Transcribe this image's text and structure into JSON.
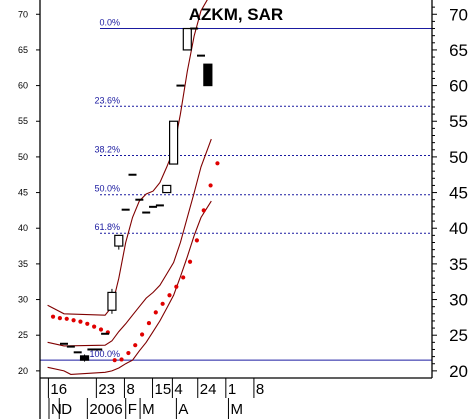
{
  "chart_data": {
    "type": "candlestick",
    "title": "AZKM, SAR",
    "left_axis": {
      "range": [
        19,
        72
      ],
      "ticks": [
        20,
        25,
        30,
        35,
        40,
        45,
        50,
        55,
        60,
        65,
        70
      ]
    },
    "right_axis": {
      "range": [
        19,
        72
      ],
      "ticks": [
        20,
        25,
        30,
        35,
        40,
        45,
        50,
        55,
        60,
        65,
        70
      ]
    },
    "x_axis": {
      "day_labels": [
        {
          "label": "16",
          "slot": -1.4
        },
        {
          "label": "23",
          "slot": 5.6
        },
        {
          "label": "8",
          "slot": 9.7
        },
        {
          "label": "15",
          "slot": 13.8
        },
        {
          "label": "4",
          "slot": 16.7
        },
        {
          "label": "24",
          "slot": 20.4
        },
        {
          "label": "1",
          "slot": 24.5
        },
        {
          "label": "8",
          "slot": 28.6
        }
      ],
      "month_labels": [
        {
          "label": "N",
          "slot": -1.9
        },
        {
          "label": "D",
          "slot": -0.4
        },
        {
          "label": "2006",
          "slot": 3.7
        },
        {
          "label": "F",
          "slot": 9.3
        },
        {
          "label": "M",
          "slot": 11.4
        },
        {
          "label": "A",
          "slot": 16.7
        },
        {
          "label": "M",
          "slot": 24.3
        }
      ]
    },
    "candles": [
      {
        "slot": 0,
        "open": 23.8,
        "high": 23.8,
        "low": 23.8,
        "close": 23.8
      },
      {
        "slot": 1,
        "open": 23.4,
        "high": 23.4,
        "low": 23.4,
        "close": 23.4
      },
      {
        "slot": 2,
        "open": 22.6,
        "high": 22.6,
        "low": 22.6,
        "close": 22.6
      },
      {
        "slot": 3,
        "open": 22.1,
        "high": 22.3,
        "low": 21.3,
        "close": 21.5
      },
      {
        "slot": 4,
        "open": 23.0,
        "high": 23.0,
        "low": 23.0,
        "close": 23.0
      },
      {
        "slot": 5,
        "open": 23.0,
        "high": 23.0,
        "low": 23.0,
        "close": 23.0
      },
      {
        "slot": 6,
        "open": 25.2,
        "high": 25.2,
        "low": 25.2,
        "close": 25.2
      },
      {
        "slot": 7,
        "open": 28.5,
        "high": 31.5,
        "low": 28.0,
        "close": 31.0
      },
      {
        "slot": 8,
        "open": 37.5,
        "high": 39.0,
        "low": 37.0,
        "close": 39.0
      },
      {
        "slot": 9,
        "open": 42.6,
        "high": 42.6,
        "low": 42.6,
        "close": 42.6
      },
      {
        "slot": 10,
        "open": 47.5,
        "high": 47.5,
        "low": 47.5,
        "close": 47.5
      },
      {
        "slot": 11,
        "open": 44.0,
        "high": 44.0,
        "low": 44.0,
        "close": 44.0
      },
      {
        "slot": 12,
        "open": 42.2,
        "high": 42.2,
        "low": 42.2,
        "close": 42.2
      },
      {
        "slot": 13,
        "open": 43.0,
        "high": 43.0,
        "low": 43.0,
        "close": 43.0
      },
      {
        "slot": 14,
        "open": 43.2,
        "high": 43.2,
        "low": 43.2,
        "close": 43.2
      },
      {
        "slot": 15,
        "open": 45.0,
        "high": 46.0,
        "low": 45.0,
        "close": 46.0
      },
      {
        "slot": 16,
        "open": 49.0,
        "high": 55.0,
        "low": 49.0,
        "close": 55.0
      },
      {
        "slot": 17,
        "open": 60.0,
        "high": 60.0,
        "low": 60.0,
        "close": 60.0
      },
      {
        "slot": 18,
        "open": 65.0,
        "high": 68.0,
        "low": 65.0,
        "close": 68.0
      },
      {
        "slot": 19,
        "open": 68.0,
        "high": 68.0,
        "low": 68.0,
        "close": 68.0
      },
      {
        "slot": 20,
        "open": 64.2,
        "high": 64.2,
        "low": 64.2,
        "close": 64.2
      },
      {
        "slot": 21,
        "open": 63.0,
        "high": 63.0,
        "low": 60.0,
        "close": 60.0
      }
    ],
    "sar": [
      {
        "slot": -1.6,
        "value": 27.6
      },
      {
        "slot": -0.6,
        "value": 27.4
      },
      {
        "slot": 0.4,
        "value": 27.3
      },
      {
        "slot": 1.4,
        "value": 27.1
      },
      {
        "slot": 2.4,
        "value": 26.9
      },
      {
        "slot": 3.4,
        "value": 26.6
      },
      {
        "slot": 4.4,
        "value": 26.2
      },
      {
        "slot": 5.4,
        "value": 25.8
      },
      {
        "slot": 6.4,
        "value": 25.4
      },
      {
        "slot": 7.4,
        "value": 21.5
      },
      {
        "slot": 8.4,
        "value": 21.6
      },
      {
        "slot": 9.4,
        "value": 22.5
      },
      {
        "slot": 10.4,
        "value": 23.6
      },
      {
        "slot": 11.4,
        "value": 25.1
      },
      {
        "slot": 12.4,
        "value": 26.7
      },
      {
        "slot": 13.4,
        "value": 28.2
      },
      {
        "slot": 14.4,
        "value": 29.4
      },
      {
        "slot": 15.4,
        "value": 30.6
      },
      {
        "slot": 16.4,
        "value": 31.8
      },
      {
        "slot": 17.4,
        "value": 33.1
      },
      {
        "slot": 18.4,
        "value": 35.3
      },
      {
        "slot": 19.4,
        "value": 38.3
      },
      {
        "slot": 20.4,
        "value": 42.5
      },
      {
        "slot": 21.4,
        "value": 46.0
      },
      {
        "slot": 22.4,
        "value": 49.1
      }
    ],
    "bands": {
      "upper": [
        [
          -2.4,
          29.2
        ],
        [
          0,
          28.0
        ],
        [
          6,
          27.8
        ],
        [
          7,
          29.0
        ],
        [
          8,
          33.0
        ],
        [
          9,
          38.0
        ],
        [
          10,
          41.5
        ],
        [
          11,
          43.8
        ],
        [
          12,
          44.8
        ],
        [
          13,
          45.2
        ],
        [
          14,
          46.4
        ],
        [
          15,
          48.6
        ],
        [
          16,
          51.0
        ],
        [
          17,
          56.0
        ],
        [
          18,
          62.0
        ],
        [
          19,
          67.0
        ],
        [
          20,
          70.5
        ],
        [
          21.5,
          73.0
        ]
      ],
      "middle": [
        [
          -2.4,
          24.0
        ],
        [
          0,
          23.5
        ],
        [
          6,
          23.6
        ],
        [
          7,
          24.2
        ],
        [
          8,
          25.5
        ],
        [
          9,
          26.6
        ],
        [
          10,
          27.8
        ],
        [
          11,
          29.0
        ],
        [
          12,
          30.2
        ],
        [
          13,
          31.0
        ],
        [
          14,
          32.0
        ],
        [
          15,
          33.6
        ],
        [
          16,
          35.2
        ],
        [
          17,
          38.0
        ],
        [
          18,
          41.5
        ],
        [
          19,
          45.0
        ],
        [
          20,
          48.6
        ],
        [
          21.5,
          52.5
        ]
      ],
      "lower": [
        [
          -2.4,
          20.5
        ],
        [
          0,
          20.0
        ],
        [
          1,
          19.5
        ],
        [
          6,
          19.8
        ],
        [
          7,
          20.0
        ],
        [
          8,
          20.4
        ],
        [
          9,
          21.0
        ],
        [
          10,
          21.5
        ],
        [
          11,
          22.8
        ],
        [
          12,
          24.0
        ],
        [
          13,
          25.5
        ],
        [
          14,
          27.0
        ],
        [
          15,
          28.8
        ],
        [
          16,
          30.6
        ],
        [
          17,
          33.2
        ],
        [
          18,
          36.0
        ],
        [
          19,
          39.0
        ],
        [
          20,
          41.5
        ],
        [
          21.5,
          43.8
        ]
      ]
    },
    "fib_levels": [
      {
        "label": "0.0%",
        "value": 68.0
      },
      {
        "label": "23.6%",
        "value": 57.1
      },
      {
        "label": "38.2%",
        "value": 50.2
      },
      {
        "label": "50.0%",
        "value": 44.7
      },
      {
        "label": "61.8%",
        "value": 39.3
      },
      {
        "label": "100.0%",
        "value": 21.5
      }
    ],
    "colors": {
      "candle": "#000000",
      "sar": "#e00000",
      "band": "#800000",
      "fib": "#1a1aa0",
      "frame": "#000000"
    }
  }
}
